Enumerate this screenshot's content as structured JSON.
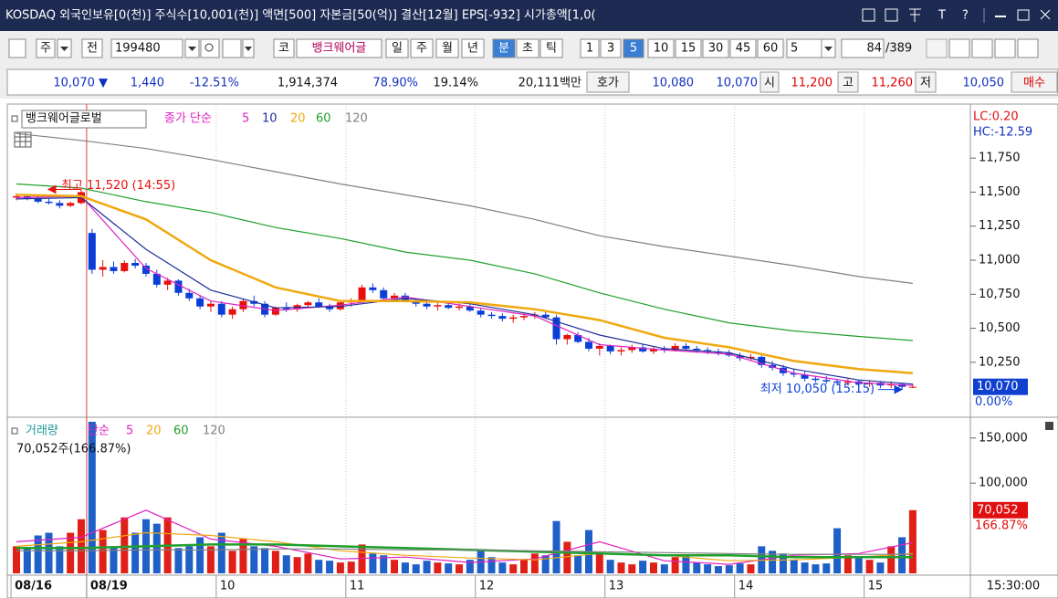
{
  "title_bar": {
    "text": "KOSDAQ 외국인보유[0(천)] 주식수[10,001(천)] 액면[500] 자본금[50(억)] 결산[12월] EPS[-932] 시가총액[1,0(",
    "icons": [
      "T",
      "?"
    ]
  },
  "toolbar": {
    "items": [
      "주",
      "전",
      "199480",
      "코",
      "뱅크웨어글",
      "일",
      "주",
      "월",
      "년",
      "분",
      "초",
      "틱",
      "1",
      "3",
      "5",
      "10",
      "15",
      "30",
      "45",
      "60",
      "5",
      "84",
      "/389"
    ]
  },
  "info_row": {
    "items": [
      "10,070 ▼",
      "1,440",
      "-12.51%",
      "1,914,374",
      "78.90%",
      "19.14%",
      "20,111백만",
      "호가",
      "10,080",
      "10,070",
      "시",
      "11,200",
      "고",
      "11,260",
      "저",
      "10,050",
      "매수"
    ]
  },
  "x_axis": {
    "ticks": [
      {
        "value": 0,
        "label": "08/16"
      },
      {
        "value": 7,
        "label": "08/19"
      },
      {
        "value": 19,
        "label": "10"
      },
      {
        "value": 31,
        "label": "11"
      },
      {
        "value": 43,
        "label": "12"
      },
      {
        "value": 55,
        "label": "13"
      },
      {
        "value": 67,
        "label": "14"
      },
      {
        "value": 79,
        "label": "15"
      }
    ],
    "time": "15:30:00"
  },
  "chart_data": [
    {
      "type": "candlestick",
      "title": "뱅크웨어글로벌",
      "legend_label": "종가 단순",
      "open": [
        11460,
        11470,
        11450,
        11430,
        11420,
        11400,
        11420,
        11200,
        10930,
        10950,
        10920,
        10980,
        10960,
        10900,
        10820,
        10850,
        10760,
        10720,
        10660,
        10680,
        10600,
        10640,
        10700,
        10680,
        10600,
        10650,
        10640,
        10670,
        10690,
        10660,
        10640,
        10690,
        10700,
        10800,
        10780,
        10720,
        10740,
        10700,
        10680,
        10660,
        10670,
        10650,
        10660,
        10630,
        10600,
        10590,
        10570,
        10580,
        10590,
        10600,
        10580,
        10420,
        10450,
        10400,
        10350,
        10370,
        10330,
        10340,
        10360,
        10330,
        10350,
        10340,
        10370,
        10350,
        10340,
        10330,
        10320,
        10300,
        10280,
        10290,
        10230,
        10210,
        10170,
        10160,
        10130,
        10120,
        10110,
        10100,
        10110,
        10090,
        10100,
        10080,
        10090,
        10070
      ],
      "high": [
        11490,
        11480,
        11470,
        11450,
        11440,
        11430,
        11520,
        11230,
        11000,
        10990,
        11000,
        11010,
        10980,
        10930,
        10870,
        10860,
        10790,
        10740,
        10700,
        10700,
        10660,
        10720,
        10740,
        10700,
        10660,
        10690,
        10680,
        10700,
        10720,
        10680,
        10700,
        10720,
        10820,
        10830,
        10800,
        10760,
        10760,
        10720,
        10700,
        10690,
        10690,
        10680,
        10680,
        10650,
        10620,
        10610,
        10600,
        10610,
        10620,
        10620,
        10600,
        10460,
        10470,
        10430,
        10390,
        10380,
        10360,
        10380,
        10380,
        10370,
        10370,
        10390,
        10390,
        10370,
        10360,
        10350,
        10340,
        10320,
        10310,
        10300,
        10260,
        10230,
        10200,
        10180,
        10150,
        10150,
        10130,
        10130,
        10120,
        10120,
        10110,
        10110,
        10100,
        10090
      ],
      "low": [
        11440,
        11440,
        11420,
        11410,
        11380,
        11390,
        11410,
        10900,
        10880,
        10900,
        10910,
        10940,
        10880,
        10800,
        10780,
        10740,
        10700,
        10640,
        10620,
        10580,
        10570,
        10620,
        10660,
        10580,
        10590,
        10620,
        10620,
        10650,
        10650,
        10620,
        10630,
        10660,
        10690,
        10760,
        10700,
        10700,
        10690,
        10660,
        10640,
        10630,
        10640,
        10630,
        10620,
        10580,
        10570,
        10550,
        10540,
        10560,
        10570,
        10570,
        10380,
        10380,
        10390,
        10330,
        10300,
        10310,
        10300,
        10320,
        10320,
        10310,
        10320,
        10330,
        10340,
        10320,
        10310,
        10300,
        10290,
        10260,
        10260,
        10210,
        10190,
        10150,
        10140,
        10110,
        10100,
        10090,
        10080,
        10080,
        10070,
        10070,
        10060,
        10060,
        10050,
        10060
      ],
      "close": [
        11470,
        11450,
        11430,
        11420,
        11400,
        11420,
        11500,
        10930,
        10950,
        10920,
        10980,
        10960,
        10900,
        10820,
        10850,
        10760,
        10720,
        10660,
        10680,
        10600,
        10640,
        10700,
        10680,
        10600,
        10650,
        10640,
        10670,
        10690,
        10660,
        10640,
        10690,
        10700,
        10800,
        10780,
        10720,
        10740,
        10700,
        10680,
        10660,
        10670,
        10650,
        10660,
        10630,
        10600,
        10590,
        10570,
        10580,
        10590,
        10600,
        10580,
        10420,
        10450,
        10400,
        10350,
        10370,
        10330,
        10340,
        10360,
        10330,
        10350,
        10340,
        10370,
        10350,
        10340,
        10330,
        10320,
        10300,
        10280,
        10290,
        10230,
        10210,
        10170,
        10160,
        10130,
        10120,
        10110,
        10100,
        10110,
        10090,
        10100,
        10080,
        10090,
        10070,
        10070
      ],
      "up_color": "#e8100c",
      "down_color": "#0b3ed8",
      "ylim": [
        9860,
        12120
      ],
      "yticks": [
        {
          "value": 11750,
          "label": "11,750"
        },
        {
          "value": 11500,
          "label": "11,500"
        },
        {
          "value": 11250,
          "label": "11,250"
        },
        {
          "value": 11000,
          "label": "11,000"
        },
        {
          "value": 10750,
          "label": "10,750"
        },
        {
          "value": 10500,
          "label": "10,500"
        },
        {
          "value": 10250,
          "label": "10,250"
        }
      ],
      "ma_x": [
        0,
        6,
        12,
        18,
        24,
        30,
        36,
        42,
        48,
        54,
        60,
        66,
        72,
        78,
        83
      ],
      "series": [
        {
          "name": "5",
          "color": "#e020c0",
          "values": [
            11460,
            11470,
            10940,
            10700,
            10630,
            10670,
            10730,
            10660,
            10590,
            10380,
            10340,
            10310,
            10170,
            10100,
            10080
          ]
        },
        {
          "name": "10",
          "color": "#1e2f9a",
          "values": [
            11450,
            11460,
            11080,
            10780,
            10650,
            10660,
            10720,
            10680,
            10600,
            10450,
            10350,
            10320,
            10200,
            10120,
            10090
          ]
        },
        {
          "name": "20",
          "color": "#f0a810",
          "values": [
            11480,
            11470,
            11300,
            11000,
            10800,
            10700,
            10700,
            10690,
            10640,
            10560,
            10430,
            10360,
            10260,
            10200,
            10170
          ]
        },
        {
          "name": "60",
          "color": "#1fa02c",
          "values": [
            11560,
            11530,
            11430,
            11350,
            11240,
            11160,
            11060,
            11000,
            10900,
            10760,
            10640,
            10540,
            10480,
            10440,
            10410
          ]
        },
        {
          "name": "120",
          "color": "#808080",
          "values": [
            11930,
            11880,
            11820,
            11740,
            11650,
            11560,
            11480,
            11400,
            11300,
            11180,
            11100,
            11030,
            10960,
            10880,
            10830
          ]
        }
      ],
      "last": {
        "value": 10070,
        "label": "10,070",
        "change": "0.00%"
      },
      "lc": "LC:0.20",
      "hc": "HC:-12.59",
      "annotations": [
        {
          "text": "최고 11,520 (14:55)",
          "index": 6,
          "value": 11520,
          "color": "#e8100c"
        },
        {
          "text": "최저 10,050 (15:15)",
          "index": 82,
          "value": 10050,
          "color": "#0b3ed8"
        }
      ]
    },
    {
      "type": "bar",
      "title": "거래량",
      "legend_label": "단순",
      "summary": "70,052주(166.87%)",
      "values": [
        30000,
        28000,
        42000,
        45000,
        30000,
        45000,
        60000,
        168000,
        48000,
        30000,
        62000,
        45000,
        60000,
        55000,
        62000,
        28000,
        30000,
        40000,
        30000,
        45000,
        25000,
        38000,
        30000,
        28000,
        25000,
        20000,
        18000,
        22000,
        15000,
        14000,
        12000,
        13000,
        32000,
        22000,
        20000,
        15000,
        12000,
        10000,
        14000,
        12000,
        11000,
        10000,
        15000,
        25000,
        18000,
        12000,
        10000,
        15000,
        22000,
        20000,
        58000,
        35000,
        20000,
        48000,
        22000,
        15000,
        12000,
        10000,
        14000,
        12000,
        10000,
        18000,
        20000,
        12000,
        10000,
        8000,
        9000,
        11000,
        10000,
        30000,
        25000,
        22000,
        15000,
        12000,
        10000,
        11000,
        50000,
        20000,
        18000,
        15000,
        12000,
        30000,
        40000,
        70052
      ],
      "up_color": "#e02018",
      "down_color": "#1f5fc8",
      "ylim": [
        0,
        170000
      ],
      "yticks": [
        {
          "value": 150000,
          "label": "150,000"
        },
        {
          "value": 100000,
          "label": "100,000"
        }
      ],
      "ma_x": [
        0,
        6,
        12,
        18,
        24,
        30,
        36,
        42,
        48,
        54,
        60,
        66,
        72,
        78,
        83
      ],
      "series": [
        {
          "name": "5",
          "color": "#e020c0",
          "values": [
            35000,
            40000,
            70000,
            38000,
            30000,
            16000,
            18000,
            12000,
            16000,
            35000,
            14000,
            10000,
            20000,
            22000,
            34000
          ]
        },
        {
          "name": "20",
          "color": "#f0a810",
          "values": [
            30000,
            35000,
            45000,
            42000,
            35000,
            25000,
            20000,
            17000,
            15000,
            22000,
            20000,
            14000,
            15000,
            18000,
            22000
          ]
        },
        {
          "name": "60",
          "color": "#1fa02c",
          "values": [
            28000,
            28000,
            30000,
            32000,
            32000,
            30000,
            28000,
            26000,
            24000,
            22000,
            20000,
            20000,
            18000,
            18000,
            18000
          ]
        },
        {
          "name": "120",
          "color": "#808080",
          "values": [
            25000,
            25000,
            26000,
            26000,
            27000,
            27000,
            26000,
            26000,
            25000,
            24000,
            23000,
            22000,
            21000,
            21000,
            21000
          ]
        }
      ],
      "last": {
        "value": 70052,
        "label": "70,052",
        "change": "166.87%"
      }
    }
  ]
}
